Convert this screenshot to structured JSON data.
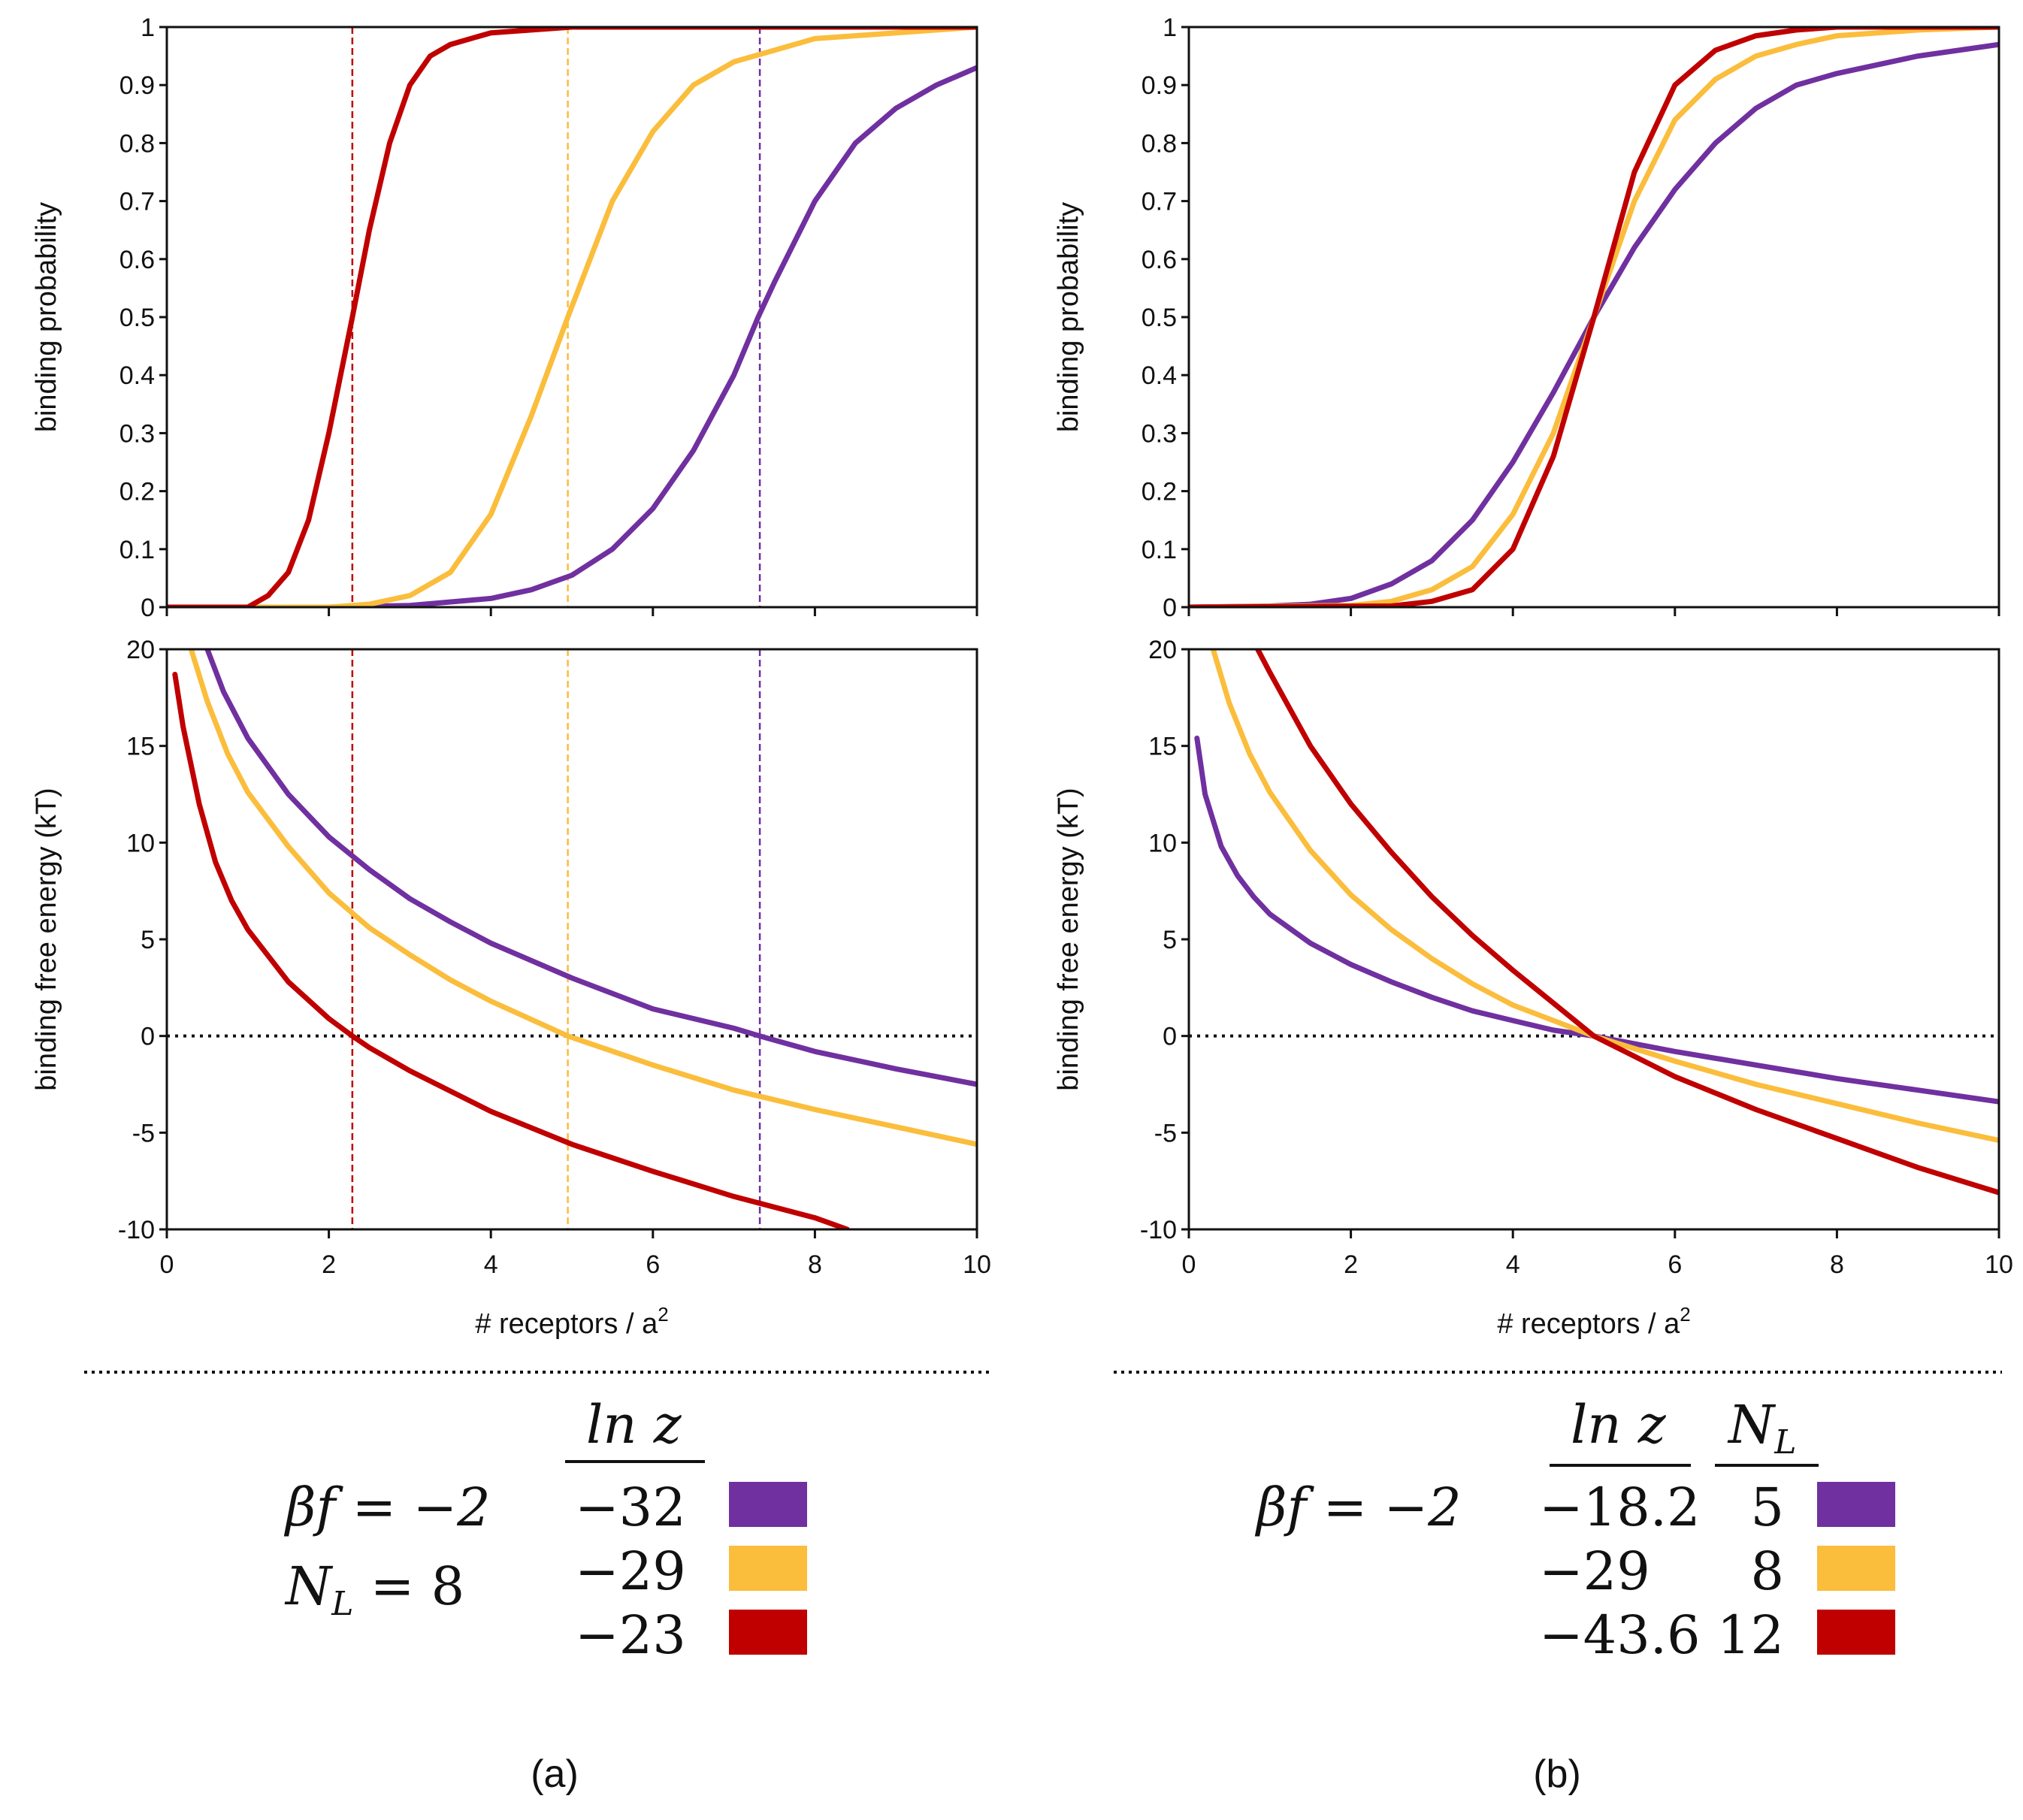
{
  "colors": {
    "purple": "#7030a0",
    "yellow": "#fbbd3c",
    "red": "#c00000"
  },
  "chart_data": [
    {
      "panel": "a-top",
      "type": "line",
      "ylabel": "binding probability",
      "xlabel": "",
      "xlim": [
        0,
        10
      ],
      "ylim": [
        0,
        1
      ],
      "xticks": [],
      "yticks": [
        "0",
        "0.1",
        "0.2",
        "0.3",
        "0.4",
        "0.5",
        "0.6",
        "0.7",
        "0.8",
        "0.9",
        "1"
      ],
      "series": [
        {
          "color": "purple",
          "x": [
            0,
            1,
            2,
            3,
            4,
            4.5,
            5,
            5.5,
            6,
            6.5,
            7,
            7.3,
            7.5,
            8,
            8.5,
            9,
            9.5,
            10
          ],
          "y": [
            0,
            0,
            0,
            0.003,
            0.015,
            0.03,
            0.055,
            0.1,
            0.17,
            0.27,
            0.4,
            0.5,
            0.56,
            0.7,
            0.8,
            0.86,
            0.9,
            0.93
          ]
        },
        {
          "color": "yellow",
          "x": [
            0,
            2,
            2.5,
            3,
            3.5,
            4,
            4.5,
            4.95,
            5.5,
            6,
            6.5,
            7,
            7.5,
            8,
            9,
            10
          ],
          "y": [
            0,
            0,
            0.005,
            0.02,
            0.06,
            0.16,
            0.33,
            0.5,
            0.7,
            0.82,
            0.9,
            0.94,
            0.96,
            0.98,
            0.99,
            1
          ]
        },
        {
          "color": "red",
          "x": [
            0,
            1,
            1.25,
            1.5,
            1.75,
            2,
            2.29,
            2.5,
            2.75,
            3,
            3.25,
            3.5,
            4,
            5,
            6,
            10
          ],
          "y": [
            0,
            0,
            0.02,
            0.06,
            0.15,
            0.3,
            0.5,
            0.65,
            0.8,
            0.9,
            0.95,
            0.97,
            0.99,
            1,
            1,
            1
          ]
        }
      ],
      "vlines": [
        {
          "x": 2.29,
          "color": "red"
        },
        {
          "x": 4.95,
          "color": "yellow"
        },
        {
          "x": 7.32,
          "color": "purple"
        }
      ]
    },
    {
      "panel": "a-bottom",
      "type": "line",
      "ylabel": "binding free energy (kT)",
      "xlabel": "# receptors / a",
      "xlabel_sup": "2",
      "xlim": [
        0,
        10
      ],
      "ylim": [
        -10,
        20
      ],
      "xticks": [
        "0",
        "2",
        "4",
        "6",
        "8",
        "10"
      ],
      "yticks": [
        "-10",
        "-5",
        "0",
        "5",
        "10",
        "15",
        "20"
      ],
      "series": [
        {
          "color": "purple",
          "x": [
            0.5,
            0.7,
            1,
            1.5,
            2,
            2.5,
            3,
            3.5,
            4,
            5,
            6,
            7,
            7.32,
            8,
            9,
            10
          ],
          "y": [
            20,
            17.8,
            15.4,
            12.5,
            10.3,
            8.6,
            7.1,
            5.9,
            4.8,
            3.0,
            1.4,
            0.4,
            0,
            -0.8,
            -1.7,
            -2.5
          ]
        },
        {
          "color": "yellow",
          "x": [
            0.3,
            0.5,
            0.75,
            1,
            1.5,
            2,
            2.5,
            3,
            3.5,
            4,
            4.95,
            6,
            7,
            8,
            9,
            10
          ],
          "y": [
            20,
            17.3,
            14.6,
            12.6,
            9.8,
            7.4,
            5.6,
            4.2,
            2.9,
            1.8,
            0,
            -1.5,
            -2.8,
            -3.8,
            -4.7,
            -5.6
          ]
        },
        {
          "color": "red",
          "x": [
            0.1,
            0.2,
            0.4,
            0.6,
            0.8,
            1,
            1.5,
            2,
            2.29,
            2.5,
            3,
            4,
            5,
            6,
            7,
            8,
            8.4
          ],
          "y": [
            18.7,
            16.0,
            12.0,
            9.0,
            7.0,
            5.5,
            2.8,
            0.9,
            0,
            -0.6,
            -1.8,
            -3.9,
            -5.6,
            -7.0,
            -8.3,
            -9.4,
            -10
          ]
        }
      ],
      "zeroline": true,
      "vlines": [
        {
          "x": 2.29,
          "color": "red"
        },
        {
          "x": 4.95,
          "color": "yellow"
        },
        {
          "x": 7.32,
          "color": "purple"
        }
      ]
    },
    {
      "panel": "b-top",
      "type": "line",
      "ylabel": "binding probability",
      "xlabel": "",
      "xlim": [
        0,
        10
      ],
      "ylim": [
        0,
        1
      ],
      "xticks": [],
      "yticks": [
        "0",
        "0.1",
        "0.2",
        "0.3",
        "0.4",
        "0.5",
        "0.6",
        "0.7",
        "0.8",
        "0.9",
        "1"
      ],
      "series": [
        {
          "color": "purple",
          "x": [
            0,
            1,
            1.5,
            2,
            2.5,
            3,
            3.5,
            4,
            4.5,
            5,
            5.5,
            6,
            6.5,
            7,
            7.5,
            8,
            9,
            10
          ],
          "y": [
            0,
            0.002,
            0.005,
            0.015,
            0.04,
            0.08,
            0.15,
            0.25,
            0.37,
            0.5,
            0.62,
            0.72,
            0.8,
            0.86,
            0.9,
            0.92,
            0.95,
            0.97
          ]
        },
        {
          "color": "yellow",
          "x": [
            0,
            2,
            2.5,
            3,
            3.5,
            4,
            4.5,
            5,
            5.5,
            6,
            6.5,
            7,
            7.5,
            8,
            9,
            10
          ],
          "y": [
            0,
            0.003,
            0.01,
            0.03,
            0.07,
            0.16,
            0.3,
            0.5,
            0.7,
            0.84,
            0.91,
            0.95,
            0.97,
            0.985,
            0.995,
            1
          ]
        },
        {
          "color": "red",
          "x": [
            0,
            2.5,
            3,
            3.5,
            4,
            4.5,
            5,
            5.5,
            6,
            6.5,
            7,
            7.5,
            8,
            10
          ],
          "y": [
            0,
            0.002,
            0.01,
            0.03,
            0.1,
            0.26,
            0.5,
            0.75,
            0.9,
            0.96,
            0.985,
            0.995,
            1,
            1
          ]
        }
      ]
    },
    {
      "panel": "b-bottom",
      "type": "line",
      "ylabel": "binding free energy (kT)",
      "xlabel": "# receptors / a",
      "xlabel_sup": "2",
      "xlim": [
        0,
        10
      ],
      "ylim": [
        -10,
        20
      ],
      "xticks": [
        "0",
        "2",
        "4",
        "6",
        "8",
        "10"
      ],
      "yticks": [
        "-10",
        "-5",
        "0",
        "5",
        "10",
        "15",
        "20"
      ],
      "series": [
        {
          "color": "purple",
          "x": [
            0.1,
            0.2,
            0.4,
            0.6,
            0.8,
            1,
            1.5,
            2,
            2.5,
            3,
            3.5,
            4,
            4.5,
            5,
            6,
            7,
            8,
            9,
            10
          ],
          "y": [
            15.4,
            12.5,
            9.8,
            8.3,
            7.2,
            6.3,
            4.8,
            3.7,
            2.8,
            2.0,
            1.3,
            0.8,
            0.3,
            0,
            -0.8,
            -1.5,
            -2.2,
            -2.8,
            -3.4
          ]
        },
        {
          "color": "yellow",
          "x": [
            0.3,
            0.5,
            0.75,
            1,
            1.5,
            2,
            2.5,
            3,
            3.5,
            4,
            4.5,
            5,
            6,
            7,
            8,
            9,
            10
          ],
          "y": [
            20,
            17.2,
            14.6,
            12.6,
            9.6,
            7.3,
            5.5,
            4.0,
            2.7,
            1.6,
            0.8,
            0,
            -1.3,
            -2.5,
            -3.5,
            -4.5,
            -5.4
          ]
        },
        {
          "color": "red",
          "x": [
            0.85,
            1,
            1.5,
            2,
            2.5,
            3,
            3.5,
            4,
            4.5,
            5,
            6,
            7,
            8,
            9,
            10
          ],
          "y": [
            20,
            18.8,
            15.0,
            12.0,
            9.5,
            7.2,
            5.2,
            3.4,
            1.7,
            0,
            -2.1,
            -3.8,
            -5.3,
            -6.8,
            -8.1
          ]
        }
      ],
      "zeroline": true
    }
  ],
  "legend_a": {
    "bf": "βf = −2",
    "nl_prefix": "N",
    "nl_sub": "L",
    "nl_value": " = 8",
    "col_header": "ln z",
    "rows": [
      {
        "lnz": "−32",
        "color": "purple"
      },
      {
        "lnz": "−29",
        "color": "yellow"
      },
      {
        "lnz": "−23",
        "color": "red"
      }
    ]
  },
  "legend_b": {
    "bf": "βf = −2",
    "col_header_lnz": "ln z",
    "col_header_nl": "N",
    "col_header_nl_sub": "L",
    "rows": [
      {
        "lnz": "−18.2",
        "nl": "5",
        "color": "purple"
      },
      {
        "lnz": "−29",
        "nl": "8",
        "color": "yellow"
      },
      {
        "lnz": "−43.6",
        "nl": "12",
        "color": "red"
      }
    ]
  },
  "panel_labels": {
    "a": "(a)",
    "b": "(b)"
  }
}
